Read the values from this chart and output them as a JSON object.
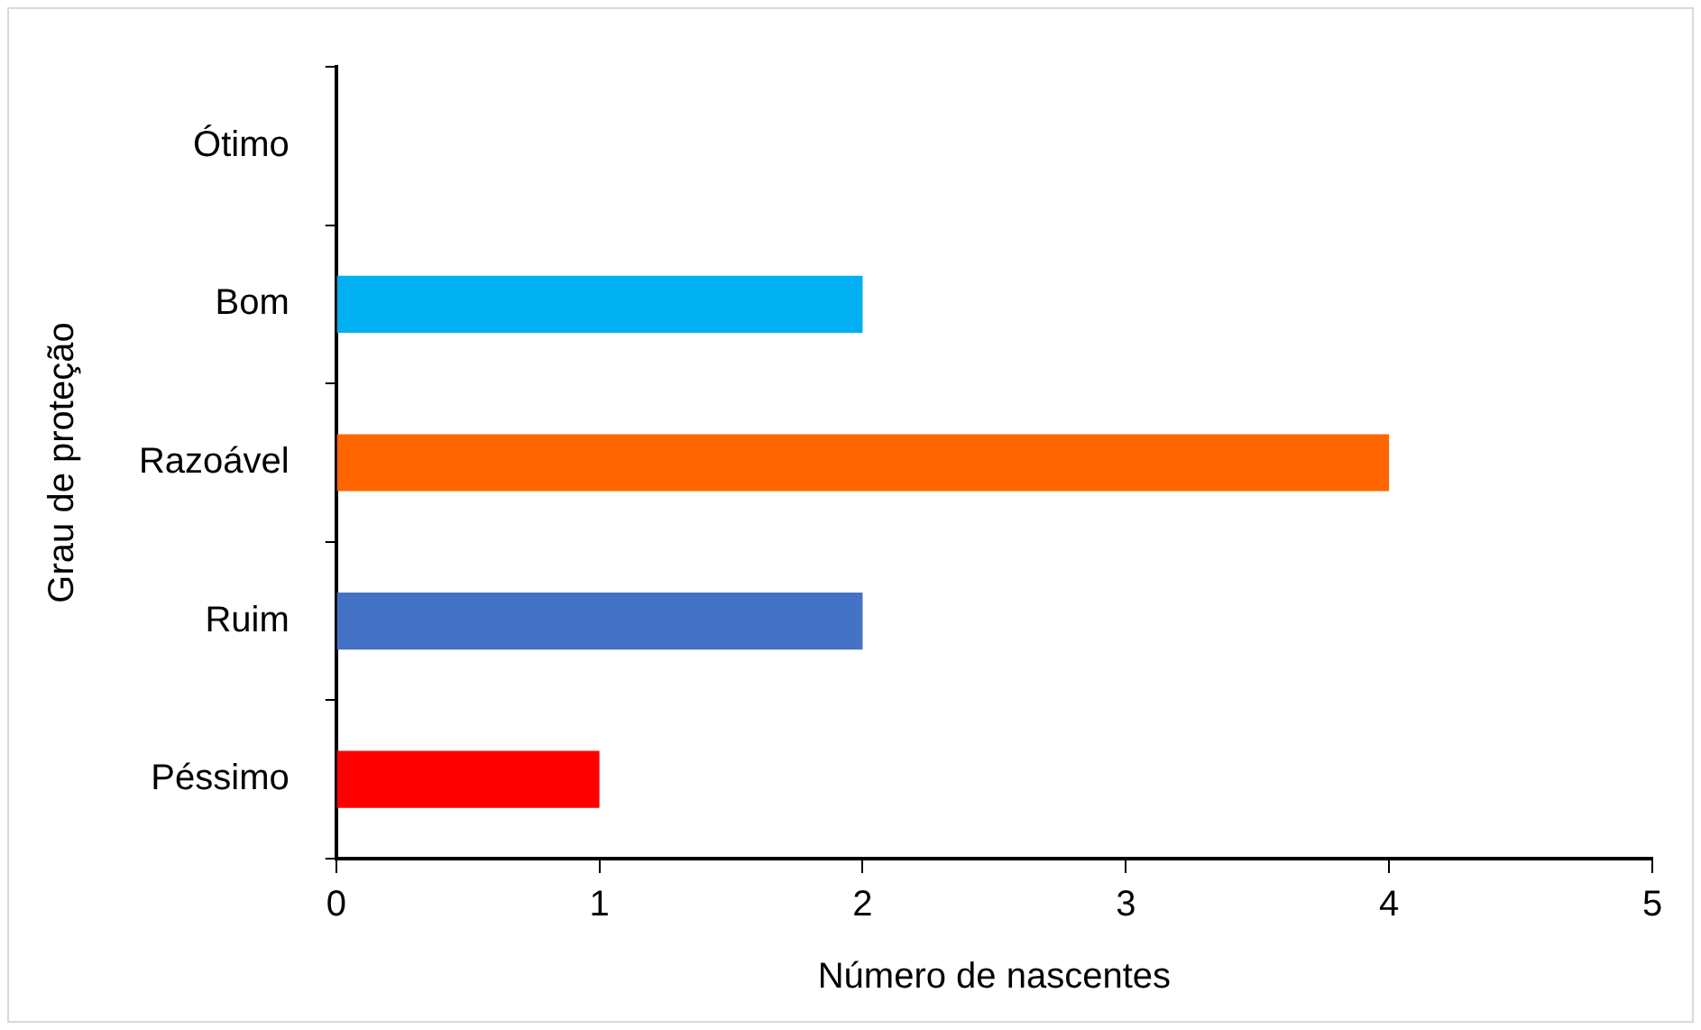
{
  "chart_data": {
    "type": "bar",
    "orientation": "horizontal",
    "xlabel": "Número de nascentes",
    "ylabel": "Grau de proteção",
    "categories": [
      "Ótimo",
      "Bom",
      "Razoável",
      "Ruim",
      "Péssimo"
    ],
    "values": [
      0,
      2,
      4,
      2,
      1
    ],
    "colors": [
      "#00b050",
      "#00b0f0",
      "#ff6600",
      "#4472c4",
      "#ff0000"
    ],
    "xlim": [
      0,
      5
    ],
    "xticks": [
      0,
      1,
      2,
      3,
      4,
      5
    ],
    "grid": false,
    "legend": false
  }
}
